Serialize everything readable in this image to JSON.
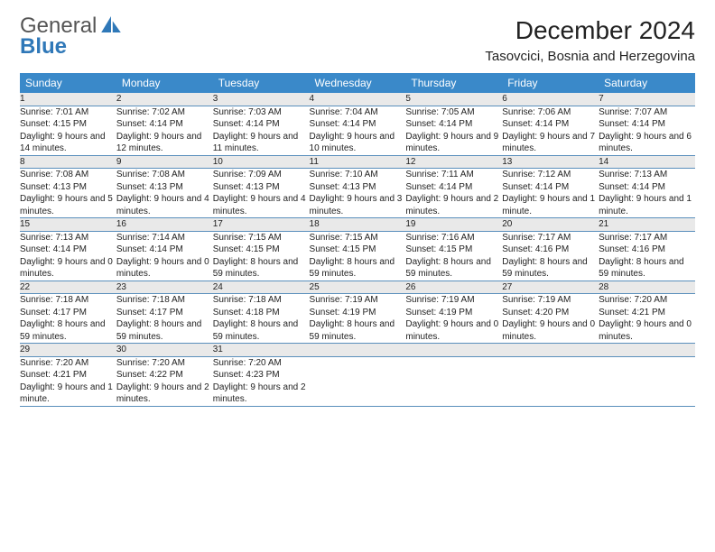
{
  "brand": {
    "name1": "General",
    "name2": "Blue"
  },
  "title": "December 2024",
  "location": "Tasovcici, Bosnia and Herzegovina",
  "colors": {
    "header_bg": "#3a89c9",
    "header_text": "#ffffff",
    "daynum_bg": "#e9e9e9",
    "row_border": "#5a8fbc",
    "brand_blue": "#2f78b8",
    "text": "#222222",
    "page_bg": "#ffffff"
  },
  "typography": {
    "title_fontsize": 28,
    "location_fontsize": 15,
    "dayheader_fontsize": 12,
    "daynum_fontsize": 11,
    "detail_fontsize": 10,
    "font_family": "Arial"
  },
  "day_headers": [
    "Sunday",
    "Monday",
    "Tuesday",
    "Wednesday",
    "Thursday",
    "Friday",
    "Saturday"
  ],
  "weeks": [
    [
      {
        "n": "1",
        "sunrise": "7:01 AM",
        "sunset": "4:15 PM",
        "daylight": "9 hours and 14 minutes."
      },
      {
        "n": "2",
        "sunrise": "7:02 AM",
        "sunset": "4:14 PM",
        "daylight": "9 hours and 12 minutes."
      },
      {
        "n": "3",
        "sunrise": "7:03 AM",
        "sunset": "4:14 PM",
        "daylight": "9 hours and 11 minutes."
      },
      {
        "n": "4",
        "sunrise": "7:04 AM",
        "sunset": "4:14 PM",
        "daylight": "9 hours and 10 minutes."
      },
      {
        "n": "5",
        "sunrise": "7:05 AM",
        "sunset": "4:14 PM",
        "daylight": "9 hours and 9 minutes."
      },
      {
        "n": "6",
        "sunrise": "7:06 AM",
        "sunset": "4:14 PM",
        "daylight": "9 hours and 7 minutes."
      },
      {
        "n": "7",
        "sunrise": "7:07 AM",
        "sunset": "4:14 PM",
        "daylight": "9 hours and 6 minutes."
      }
    ],
    [
      {
        "n": "8",
        "sunrise": "7:08 AM",
        "sunset": "4:13 PM",
        "daylight": "9 hours and 5 minutes."
      },
      {
        "n": "9",
        "sunrise": "7:08 AM",
        "sunset": "4:13 PM",
        "daylight": "9 hours and 4 minutes."
      },
      {
        "n": "10",
        "sunrise": "7:09 AM",
        "sunset": "4:13 PM",
        "daylight": "9 hours and 4 minutes."
      },
      {
        "n": "11",
        "sunrise": "7:10 AM",
        "sunset": "4:13 PM",
        "daylight": "9 hours and 3 minutes."
      },
      {
        "n": "12",
        "sunrise": "7:11 AM",
        "sunset": "4:14 PM",
        "daylight": "9 hours and 2 minutes."
      },
      {
        "n": "13",
        "sunrise": "7:12 AM",
        "sunset": "4:14 PM",
        "daylight": "9 hours and 1 minute."
      },
      {
        "n": "14",
        "sunrise": "7:13 AM",
        "sunset": "4:14 PM",
        "daylight": "9 hours and 1 minute."
      }
    ],
    [
      {
        "n": "15",
        "sunrise": "7:13 AM",
        "sunset": "4:14 PM",
        "daylight": "9 hours and 0 minutes."
      },
      {
        "n": "16",
        "sunrise": "7:14 AM",
        "sunset": "4:14 PM",
        "daylight": "9 hours and 0 minutes."
      },
      {
        "n": "17",
        "sunrise": "7:15 AM",
        "sunset": "4:15 PM",
        "daylight": "8 hours and 59 minutes."
      },
      {
        "n": "18",
        "sunrise": "7:15 AM",
        "sunset": "4:15 PM",
        "daylight": "8 hours and 59 minutes."
      },
      {
        "n": "19",
        "sunrise": "7:16 AM",
        "sunset": "4:15 PM",
        "daylight": "8 hours and 59 minutes."
      },
      {
        "n": "20",
        "sunrise": "7:17 AM",
        "sunset": "4:16 PM",
        "daylight": "8 hours and 59 minutes."
      },
      {
        "n": "21",
        "sunrise": "7:17 AM",
        "sunset": "4:16 PM",
        "daylight": "8 hours and 59 minutes."
      }
    ],
    [
      {
        "n": "22",
        "sunrise": "7:18 AM",
        "sunset": "4:17 PM",
        "daylight": "8 hours and 59 minutes."
      },
      {
        "n": "23",
        "sunrise": "7:18 AM",
        "sunset": "4:17 PM",
        "daylight": "8 hours and 59 minutes."
      },
      {
        "n": "24",
        "sunrise": "7:18 AM",
        "sunset": "4:18 PM",
        "daylight": "8 hours and 59 minutes."
      },
      {
        "n": "25",
        "sunrise": "7:19 AM",
        "sunset": "4:19 PM",
        "daylight": "8 hours and 59 minutes."
      },
      {
        "n": "26",
        "sunrise": "7:19 AM",
        "sunset": "4:19 PM",
        "daylight": "9 hours and 0 minutes."
      },
      {
        "n": "27",
        "sunrise": "7:19 AM",
        "sunset": "4:20 PM",
        "daylight": "9 hours and 0 minutes."
      },
      {
        "n": "28",
        "sunrise": "7:20 AM",
        "sunset": "4:21 PM",
        "daylight": "9 hours and 0 minutes."
      }
    ],
    [
      {
        "n": "29",
        "sunrise": "7:20 AM",
        "sunset": "4:21 PM",
        "daylight": "9 hours and 1 minute."
      },
      {
        "n": "30",
        "sunrise": "7:20 AM",
        "sunset": "4:22 PM",
        "daylight": "9 hours and 2 minutes."
      },
      {
        "n": "31",
        "sunrise": "7:20 AM",
        "sunset": "4:23 PM",
        "daylight": "9 hours and 2 minutes."
      },
      null,
      null,
      null,
      null
    ]
  ],
  "labels": {
    "sunrise": "Sunrise:",
    "sunset": "Sunset:",
    "daylight": "Daylight:"
  }
}
